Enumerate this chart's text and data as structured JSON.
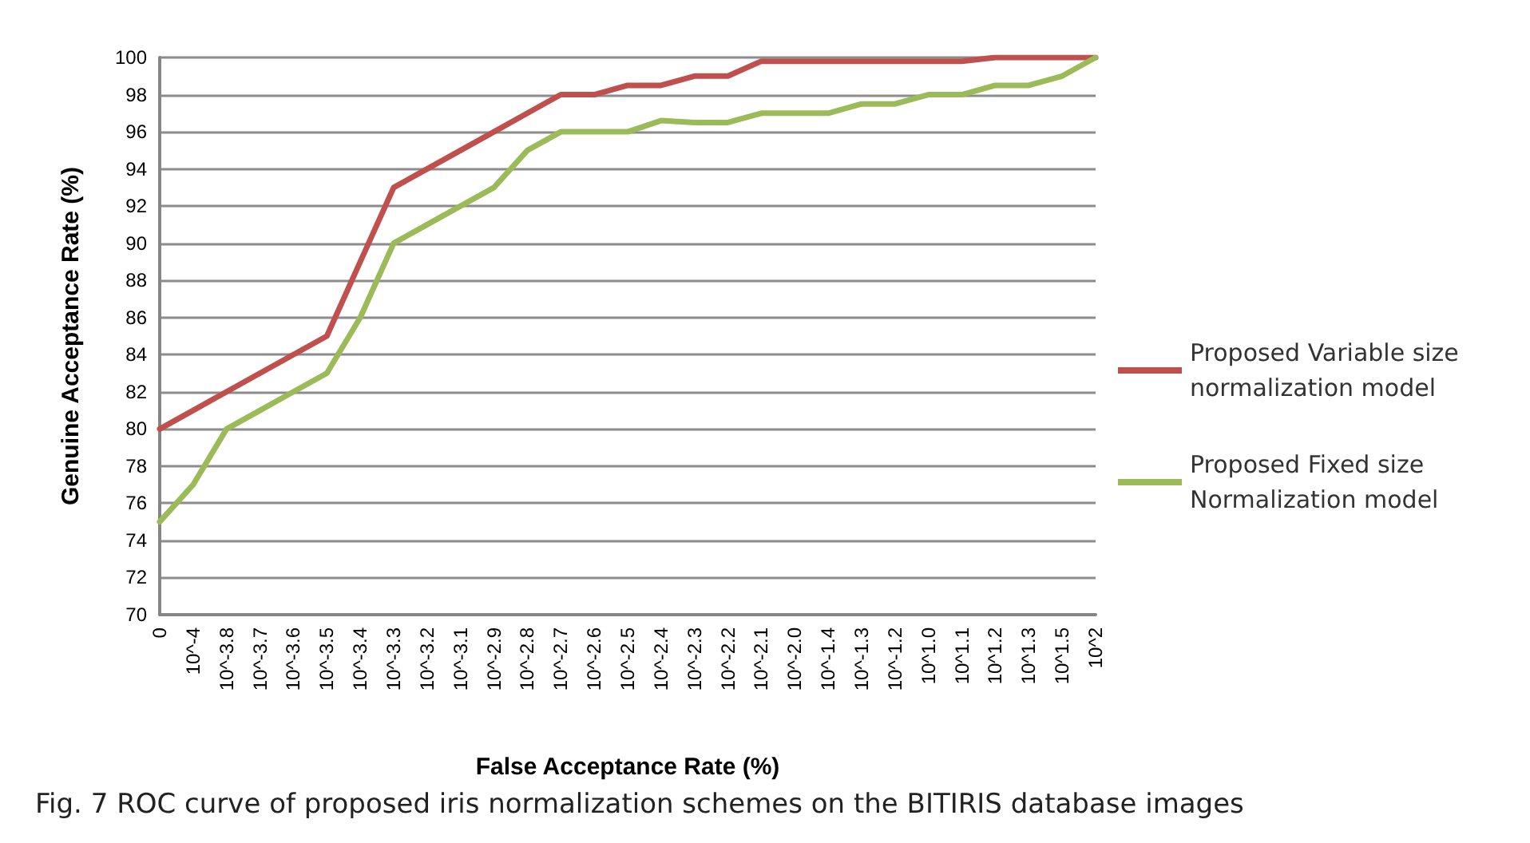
{
  "chart_data": {
    "type": "line",
    "xlabel": "False Acceptance Rate (%)",
    "ylabel": "Genuine Acceptance Rate (%)",
    "annotations": [
      "Fig. 7  ROC curve of proposed iris normalization schemes on the BITIRIS database images"
    ],
    "categories": [
      "0",
      "10^-4",
      "10^-3.8",
      "10^-3.7",
      "10^-3.6",
      "10^-3.5",
      "10^-3.4",
      "10^-3.3",
      "10^-3.2",
      "10^-3.1",
      "10^-2.9",
      "10^-2.8",
      "10^-2.7",
      "10^-2.6",
      "10^-2.5",
      "10^-2.4",
      "10^-2.3",
      "10^-2.2",
      "10^-2.1",
      "10^-2.0",
      "10^-1.4",
      "10^-1.3",
      "10^-1.2",
      "10^1.0",
      "10^1.1",
      "10^1.2",
      "10^1.3",
      "10^1.5",
      "10^2"
    ],
    "series": [
      {
        "name": "Proposed Variable size normalization model",
        "color": "#c0504d",
        "values": [
          80,
          81,
          82,
          83,
          84,
          85,
          89,
          93,
          94,
          95,
          96,
          97,
          98,
          98,
          98.5,
          98.5,
          99,
          99,
          99.8,
          99.8,
          99.8,
          99.8,
          99.8,
          99.8,
          99.8,
          100,
          100,
          100,
          100
        ]
      },
      {
        "name": "Proposed Fixed size Normalization model",
        "color": "#9bbb59",
        "values": [
          75,
          77,
          80,
          81,
          82,
          83,
          86,
          90,
          91,
          92,
          93,
          95,
          96,
          96,
          96,
          96.6,
          96.5,
          96.5,
          97,
          97,
          97,
          97.5,
          97.5,
          98,
          98,
          98.5,
          98.5,
          99,
          100
        ]
      }
    ],
    "ylim": [
      70,
      100
    ],
    "yticks": [
      70,
      72,
      74,
      76,
      78,
      80,
      82,
      84,
      86,
      88,
      90,
      92,
      94,
      96,
      98,
      100
    ],
    "grid": "y",
    "legend": "right",
    "marker": "none",
    "line_style": "solid"
  }
}
